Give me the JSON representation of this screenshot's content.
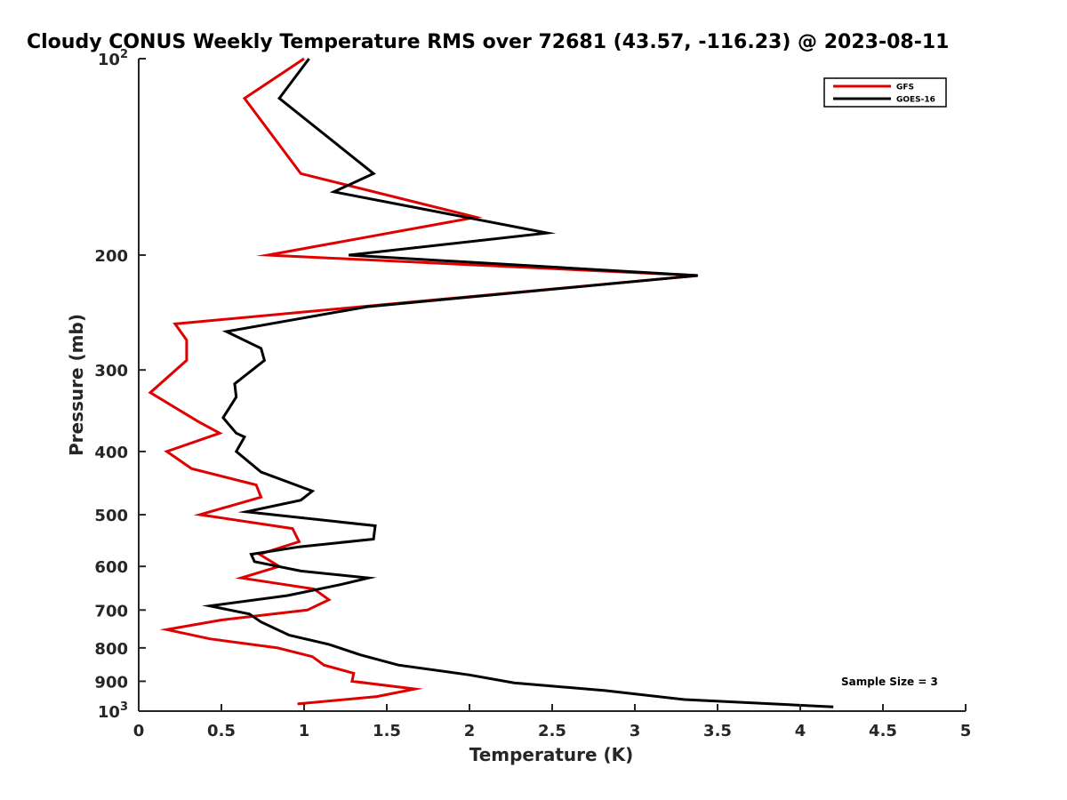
{
  "chart_data": {
    "type": "line",
    "title": "Cloudy CONUS Weekly Temperature RMS over 72681 (43.57, -116.23) @ 2023-08-11",
    "xlabel": "Temperature (K)",
    "ylabel": "Pressure (mb)",
    "xlim": [
      0,
      5
    ],
    "ylim": [
      100,
      1000
    ],
    "y_scale": "log",
    "y_reversed": true,
    "x_ticks": [
      "0",
      "0.5",
      "1",
      "1.5",
      "2",
      "2.5",
      "3",
      "3.5",
      "4",
      "4.5",
      "5"
    ],
    "x_tick_values": [
      0,
      0.5,
      1,
      1.5,
      2,
      2.5,
      3,
      3.5,
      4,
      4.5,
      5
    ],
    "y_ticks": [
      {
        "value": 100,
        "base": "10",
        "exp": "2"
      },
      {
        "value": 200,
        "label": "200"
      },
      {
        "value": 300,
        "label": "300"
      },
      {
        "value": 400,
        "label": "400"
      },
      {
        "value": 500,
        "label": "500"
      },
      {
        "value": 600,
        "label": "600"
      },
      {
        "value": 700,
        "label": "700"
      },
      {
        "value": 800,
        "label": "800"
      },
      {
        "value": 900,
        "label": "900"
      },
      {
        "value": 1000,
        "base": "10",
        "exp": "3"
      }
    ],
    "grid": false,
    "legend_position": "top-right",
    "series": [
      {
        "name": "GFS",
        "color": "#e00000",
        "points": [
          [
            1.0,
            100
          ],
          [
            0.64,
            115
          ],
          [
            0.98,
            150
          ],
          [
            2.04,
            175
          ],
          [
            0.78,
            200
          ],
          [
            3.38,
            215
          ],
          [
            0.22,
            255
          ],
          [
            0.29,
            270
          ],
          [
            0.29,
            290
          ],
          [
            0.07,
            325
          ],
          [
            0.36,
            360
          ],
          [
            0.49,
            375
          ],
          [
            0.17,
            400
          ],
          [
            0.32,
            425
          ],
          [
            0.71,
            450
          ],
          [
            0.74,
            470
          ],
          [
            0.37,
            500
          ],
          [
            0.93,
            525
          ],
          [
            0.97,
            550
          ],
          [
            0.73,
            575
          ],
          [
            0.85,
            600
          ],
          [
            0.62,
            625
          ],
          [
            1.06,
            650
          ],
          [
            1.15,
            675
          ],
          [
            1.02,
            700
          ],
          [
            0.5,
            725
          ],
          [
            0.17,
            750
          ],
          [
            0.43,
            775
          ],
          [
            0.84,
            800
          ],
          [
            1.05,
            825
          ],
          [
            1.12,
            850
          ],
          [
            1.3,
            875
          ],
          [
            1.29,
            900
          ],
          [
            1.67,
            925
          ],
          [
            1.44,
            950
          ],
          [
            0.96,
            975
          ]
        ]
      },
      {
        "name": "GOES-16",
        "color": "#000000",
        "points": [
          [
            1.03,
            100
          ],
          [
            0.85,
            115
          ],
          [
            1.42,
            150
          ],
          [
            1.18,
            160
          ],
          [
            2.47,
            185
          ],
          [
            1.27,
            200
          ],
          [
            3.38,
            215
          ],
          [
            1.38,
            240
          ],
          [
            0.53,
            262
          ],
          [
            0.74,
            278
          ],
          [
            0.76,
            290
          ],
          [
            0.58,
            315
          ],
          [
            0.59,
            330
          ],
          [
            0.51,
            355
          ],
          [
            0.59,
            375
          ],
          [
            0.64,
            380
          ],
          [
            0.59,
            400
          ],
          [
            0.74,
            430
          ],
          [
            1.05,
            460
          ],
          [
            0.98,
            475
          ],
          [
            0.65,
            495
          ],
          [
            1.43,
            520
          ],
          [
            1.42,
            545
          ],
          [
            0.97,
            560
          ],
          [
            0.68,
            575
          ],
          [
            0.7,
            590
          ],
          [
            0.98,
            610
          ],
          [
            1.39,
            625
          ],
          [
            1.22,
            640
          ],
          [
            0.9,
            665
          ],
          [
            0.43,
            690
          ],
          [
            0.67,
            710
          ],
          [
            0.74,
            730
          ],
          [
            0.91,
            765
          ],
          [
            1.15,
            790
          ],
          [
            1.34,
            820
          ],
          [
            1.57,
            850
          ],
          [
            2.0,
            880
          ],
          [
            2.27,
            905
          ],
          [
            2.82,
            930
          ],
          [
            3.3,
            960
          ],
          [
            4.2,
            985
          ]
        ]
      }
    ],
    "annotation": "Sample Size = 3"
  }
}
